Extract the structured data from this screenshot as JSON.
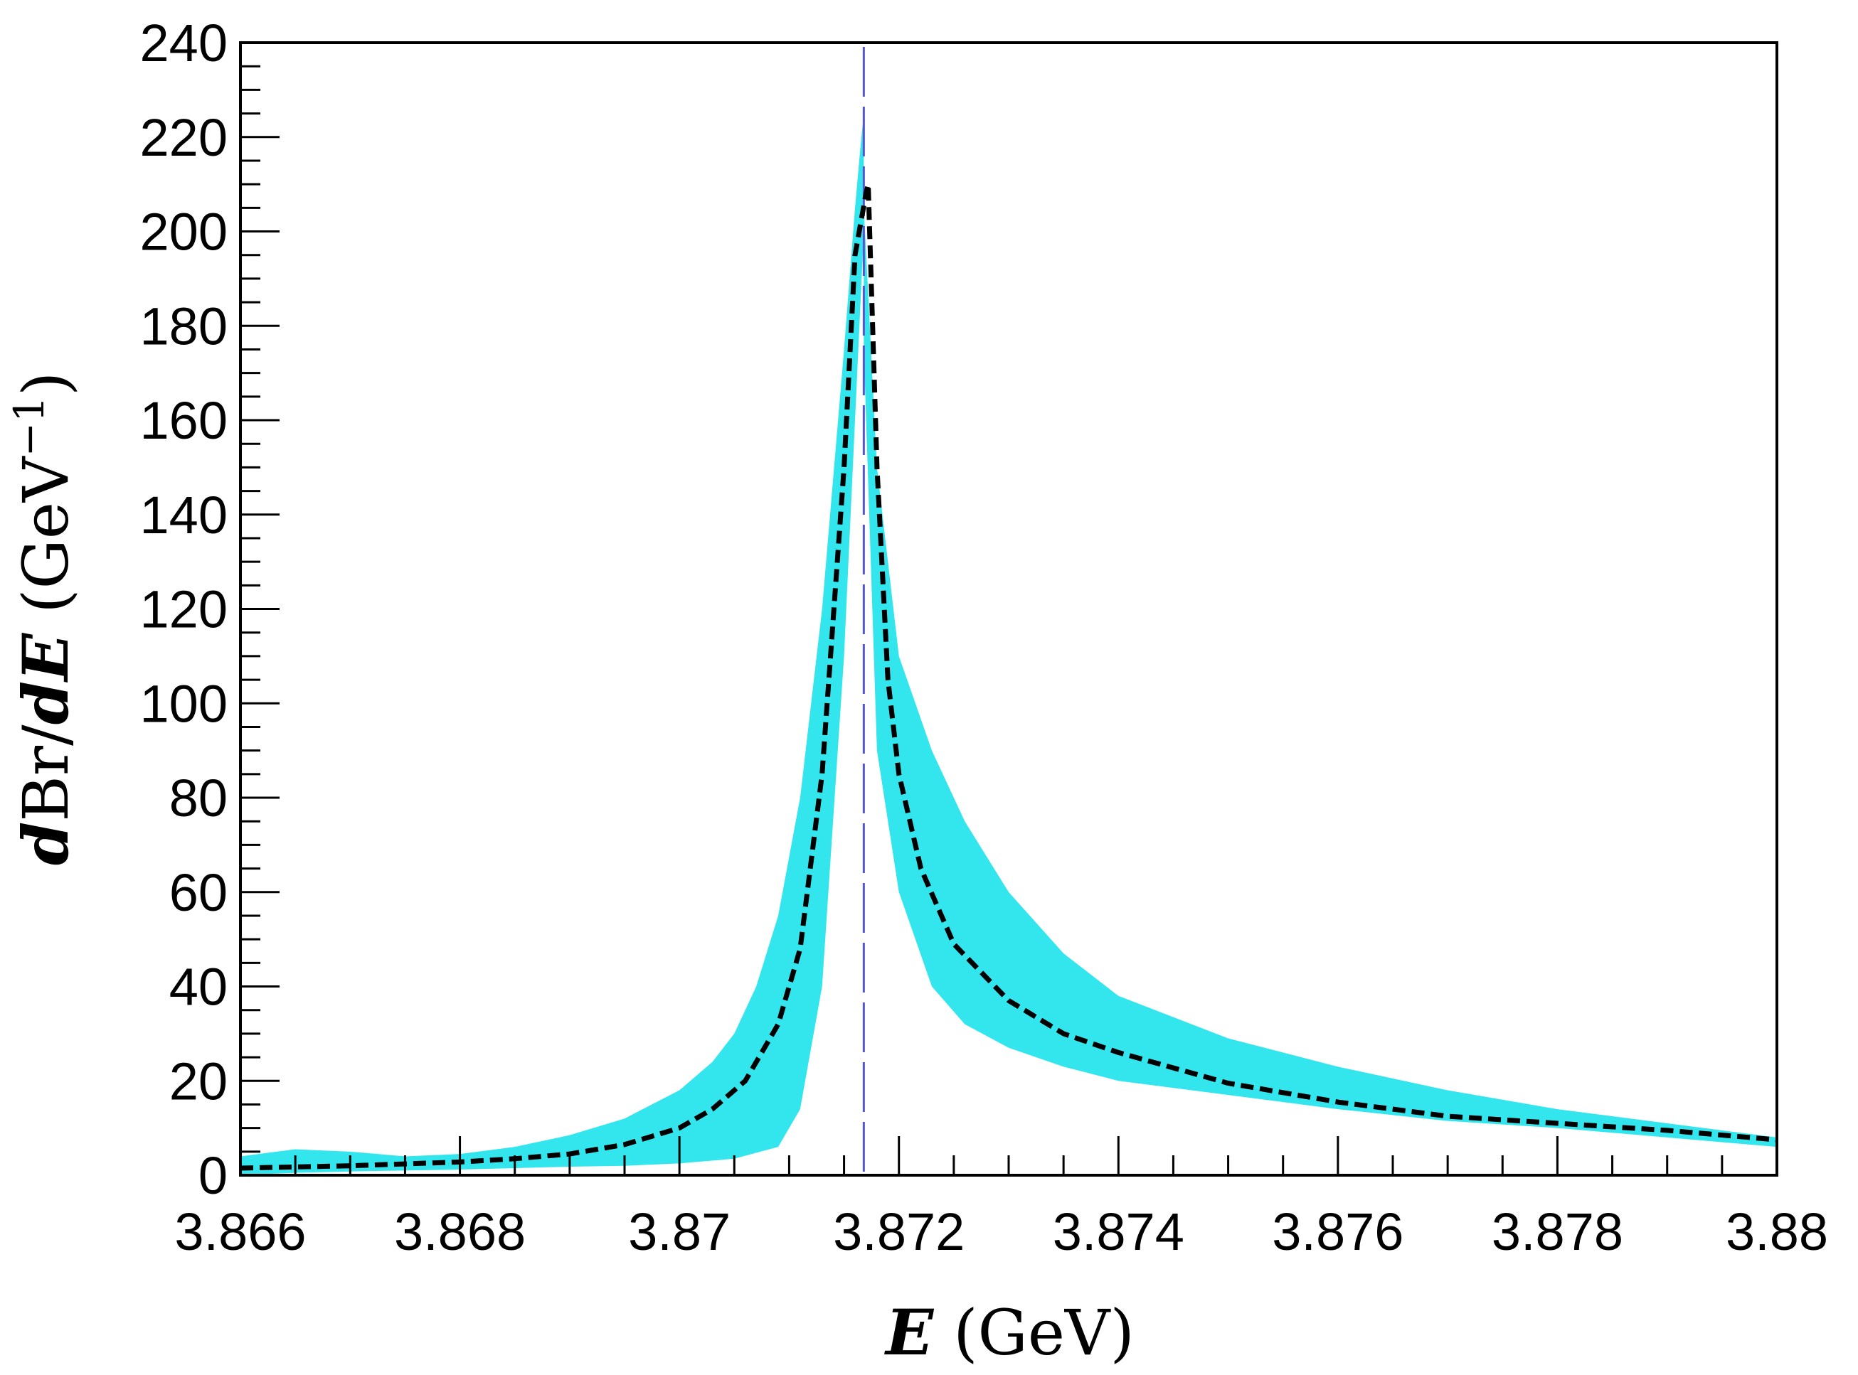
{
  "chart_data": {
    "type": "line",
    "xlabel": "E (GeV)",
    "ylabel": "dBr/dE (GeV⁻¹)",
    "xlim": [
      3.866,
      3.88
    ],
    "ylim": [
      0,
      240
    ],
    "x_ticks": [
      3.866,
      3.868,
      3.87,
      3.872,
      3.874,
      3.876,
      3.878,
      3.88
    ],
    "x_tick_labels": [
      "3.866",
      "3.868",
      "3.87",
      "3.872",
      "3.874",
      "3.876",
      "3.878",
      "3.88"
    ],
    "y_ticks": [
      0,
      20,
      40,
      60,
      80,
      100,
      120,
      140,
      160,
      180,
      200,
      220,
      240
    ],
    "y_tick_labels": [
      "0",
      "20",
      "40",
      "60",
      "80",
      "100",
      "120",
      "140",
      "160",
      "180",
      "200",
      "220",
      "240"
    ],
    "grid": false,
    "threshold_line": {
      "x": 3.87168,
      "style": "dashed",
      "color": "#5555cc"
    },
    "band": {
      "color": "#33e6ee",
      "upper": [
        [
          3.866,
          4
        ],
        [
          3.8665,
          5.5
        ],
        [
          3.867,
          5
        ],
        [
          3.8675,
          4
        ],
        [
          3.868,
          4.5
        ],
        [
          3.8685,
          6
        ],
        [
          3.869,
          8.5
        ],
        [
          3.8695,
          12
        ],
        [
          3.87,
          18
        ],
        [
          3.8703,
          24
        ],
        [
          3.8705,
          30
        ],
        [
          3.8707,
          40
        ],
        [
          3.8709,
          55
        ],
        [
          3.8711,
          80
        ],
        [
          3.8713,
          120
        ],
        [
          3.8715,
          175
        ],
        [
          3.8716,
          205
        ],
        [
          3.87165,
          218
        ],
        [
          3.87168,
          225
        ]
      ],
      "lower": [
        [
          3.866,
          0
        ],
        [
          3.8665,
          0.5
        ],
        [
          3.867,
          0.8
        ],
        [
          3.8675,
          1
        ],
        [
          3.868,
          1.2
        ],
        [
          3.8685,
          1.5
        ],
        [
          3.869,
          1.8
        ],
        [
          3.8695,
          2
        ],
        [
          3.87,
          2.5
        ],
        [
          3.8705,
          3.5
        ],
        [
          3.8709,
          6
        ],
        [
          3.8711,
          14
        ],
        [
          3.8713,
          40
        ],
        [
          3.8715,
          110
        ],
        [
          3.87168,
          200
        ]
      ],
      "upper_right": [
        [
          3.87168,
          205
        ],
        [
          3.8718,
          150
        ],
        [
          3.872,
          110
        ],
        [
          3.8723,
          90
        ],
        [
          3.8726,
          75
        ],
        [
          3.873,
          60
        ],
        [
          3.8735,
          47
        ],
        [
          3.874,
          38
        ],
        [
          3.875,
          29
        ],
        [
          3.876,
          23
        ],
        [
          3.877,
          18
        ],
        [
          3.878,
          14
        ],
        [
          3.879,
          11
        ],
        [
          3.88,
          8
        ]
      ],
      "lower_right": [
        [
          3.87168,
          175
        ],
        [
          3.8718,
          90
        ],
        [
          3.872,
          60
        ],
        [
          3.8723,
          40
        ],
        [
          3.8726,
          32
        ],
        [
          3.873,
          27
        ],
        [
          3.8735,
          23
        ],
        [
          3.874,
          20
        ],
        [
          3.875,
          17
        ],
        [
          3.876,
          14
        ],
        [
          3.877,
          11.5
        ],
        [
          3.878,
          10
        ],
        [
          3.879,
          8
        ],
        [
          3.88,
          6
        ]
      ]
    },
    "series": [
      {
        "style": "dashed",
        "color": "#000000",
        "x": [
          3.866,
          3.867,
          3.868,
          3.8685,
          3.869,
          3.8695,
          3.87,
          3.8703,
          3.8706,
          3.8709,
          3.8711,
          3.8713,
          3.8715,
          3.8716,
          3.8717,
          3.87172,
          3.8718,
          3.8719,
          3.872,
          3.8722,
          3.8725,
          3.873,
          3.8735,
          3.874,
          3.875,
          3.876,
          3.877,
          3.878,
          3.879,
          3.88
        ],
        "y": [
          1.5,
          2,
          2.8,
          3.5,
          4.5,
          6.5,
          10,
          14,
          20,
          32,
          48,
          85,
          150,
          195,
          208,
          210,
          150,
          105,
          85,
          65,
          49,
          37,
          30,
          26,
          19.5,
          15.5,
          12.5,
          11,
          9.5,
          7.5
        ]
      }
    ]
  }
}
